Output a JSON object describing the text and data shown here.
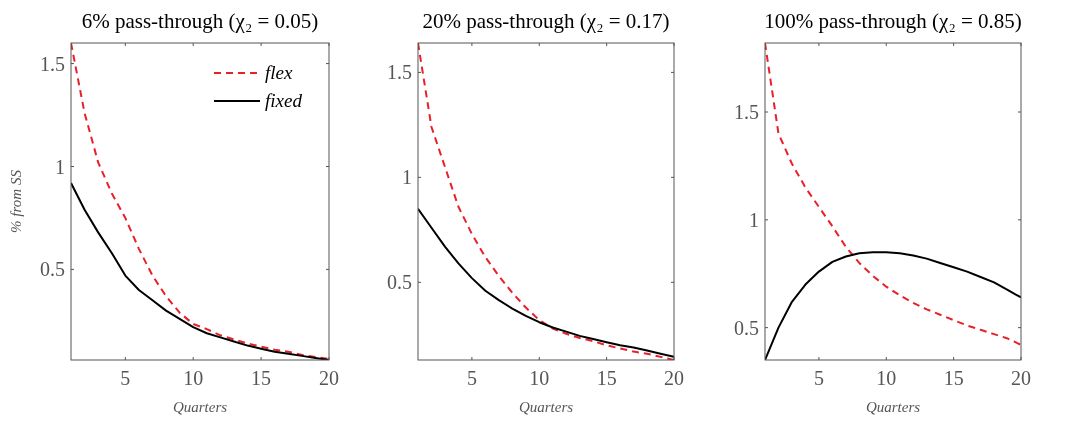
{
  "chart_data": [
    {
      "type": "line",
      "title": "6% pass-through (χ₂ = 0.05)",
      "xlabel": "Quarters",
      "ylabel": "% from SS",
      "legend": "top right",
      "x": [
        1,
        2,
        3,
        4,
        5,
        6,
        7,
        8,
        9,
        10,
        11,
        12,
        13,
        14,
        15,
        16,
        17,
        18,
        19,
        20
      ],
      "xlim": [
        1,
        20
      ],
      "xticks": [
        5,
        10,
        15,
        20
      ],
      "ylim": [
        0.06,
        1.6
      ],
      "yticks": [
        0.5,
        1,
        1.5
      ],
      "series": [
        {
          "name": "flex",
          "color": "#e8202a",
          "line_style": "dashed",
          "values": [
            1.6,
            1.26,
            1.02,
            0.87,
            0.75,
            0.6,
            0.47,
            0.37,
            0.29,
            0.235,
            0.21,
            0.18,
            0.16,
            0.14,
            0.125,
            0.11,
            0.1,
            0.085,
            0.075,
            0.065
          ]
        },
        {
          "name": "fixed",
          "color": "#000000",
          "line_style": "solid",
          "values": [
            0.92,
            0.79,
            0.68,
            0.58,
            0.47,
            0.4,
            0.35,
            0.3,
            0.26,
            0.22,
            0.19,
            0.17,
            0.15,
            0.13,
            0.115,
            0.1,
            0.09,
            0.08,
            0.07,
            0.06
          ]
        }
      ]
    },
    {
      "type": "line",
      "title": "20% pass-through (χ₂ = 0.17)",
      "xlabel": "Quarters",
      "x": [
        1,
        2,
        3,
        4,
        5,
        6,
        7,
        8,
        9,
        10,
        11,
        12,
        13,
        14,
        15,
        16,
        17,
        18,
        19,
        20
      ],
      "xlim": [
        1,
        20
      ],
      "xticks": [
        5,
        10,
        15,
        20
      ],
      "ylim": [
        0.13,
        1.64
      ],
      "yticks": [
        0.5,
        1,
        1.5
      ],
      "series": [
        {
          "color": "#e8202a",
          "line_style": "dashed",
          "values": [
            1.64,
            1.24,
            1.05,
            0.86,
            0.73,
            0.62,
            0.53,
            0.45,
            0.38,
            0.32,
            0.28,
            0.255,
            0.235,
            0.22,
            0.2,
            0.185,
            0.17,
            0.16,
            0.145,
            0.13
          ]
        },
        {
          "color": "#000000",
          "line_style": "solid",
          "values": [
            0.85,
            0.76,
            0.67,
            0.59,
            0.52,
            0.46,
            0.415,
            0.375,
            0.34,
            0.31,
            0.285,
            0.265,
            0.245,
            0.23,
            0.215,
            0.2,
            0.19,
            0.175,
            0.16,
            0.145
          ]
        }
      ]
    },
    {
      "type": "line",
      "title": "100% pass-through (χ₂ = 0.85)",
      "xlabel": "Quarters",
      "x": [
        1,
        2,
        3,
        4,
        5,
        6,
        7,
        8,
        9,
        10,
        11,
        12,
        13,
        14,
        15,
        16,
        17,
        18,
        19,
        20
      ],
      "xlim": [
        1,
        20
      ],
      "xticks": [
        5,
        10,
        15,
        20
      ],
      "ylim": [
        0.35,
        1.82
      ],
      "yticks": [
        0.5,
        1,
        1.5
      ],
      "series": [
        {
          "color": "#e8202a",
          "line_style": "dashed",
          "values": [
            1.82,
            1.4,
            1.26,
            1.15,
            1.06,
            0.97,
            0.875,
            0.8,
            0.74,
            0.69,
            0.65,
            0.615,
            0.585,
            0.56,
            0.535,
            0.51,
            0.49,
            0.47,
            0.45,
            0.42
          ]
        },
        {
          "color": "#000000",
          "line_style": "solid",
          "values": [
            0.35,
            0.5,
            0.62,
            0.7,
            0.76,
            0.805,
            0.83,
            0.845,
            0.85,
            0.85,
            0.845,
            0.835,
            0.82,
            0.8,
            0.78,
            0.76,
            0.735,
            0.71,
            0.675,
            0.64
          ]
        }
      ]
    }
  ]
}
